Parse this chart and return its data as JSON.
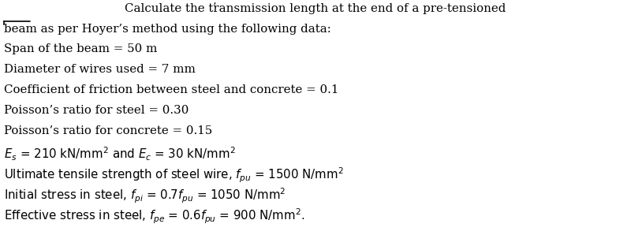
{
  "title_line1": "Calculate the transmission length at the end of a pre-tensioned",
  "title_line2": "beam as per Hoyer’s method using the following data:",
  "line1": "Span of the beam = 50 m",
  "line2": "Diameter of wires used = 7 mm",
  "line3": "Coefficient of friction between steel and concrete = 0.1",
  "line4": "Poisson’s ratio for steel = 0.30",
  "line5": "Poisson’s ratio for concrete = 0.15",
  "bg_color": "#ffffff",
  "text_color": "#000000",
  "font_size": 10.8
}
